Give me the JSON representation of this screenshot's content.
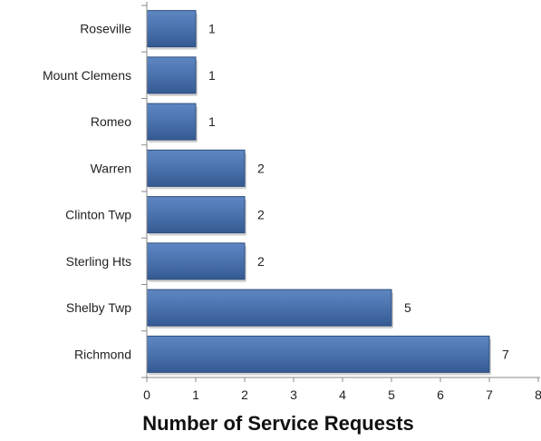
{
  "chart_data": {
    "type": "bar",
    "orientation": "horizontal",
    "title": "",
    "xlabel": "Number of Service Requests",
    "ylabel": "",
    "categories": [
      "Roseville",
      "Mount Clemens",
      "Romeo",
      "Warren",
      "Clinton Twp",
      "Sterling Hts",
      "Shelby Twp",
      "Richmond"
    ],
    "values": [
      1,
      1,
      1,
      2,
      2,
      2,
      5,
      7
    ],
    "xlim": [
      0,
      8
    ],
    "x_ticks": [
      "0",
      "1",
      "2",
      "3",
      "4",
      "5",
      "6",
      "7",
      "8"
    ],
    "grid": false,
    "legend": "none",
    "data_labels": true,
    "colors": {
      "bar_fill": "#4a72ad",
      "bar_stroke": "#2c4d7e",
      "axis": "#8a8a8a"
    }
  }
}
